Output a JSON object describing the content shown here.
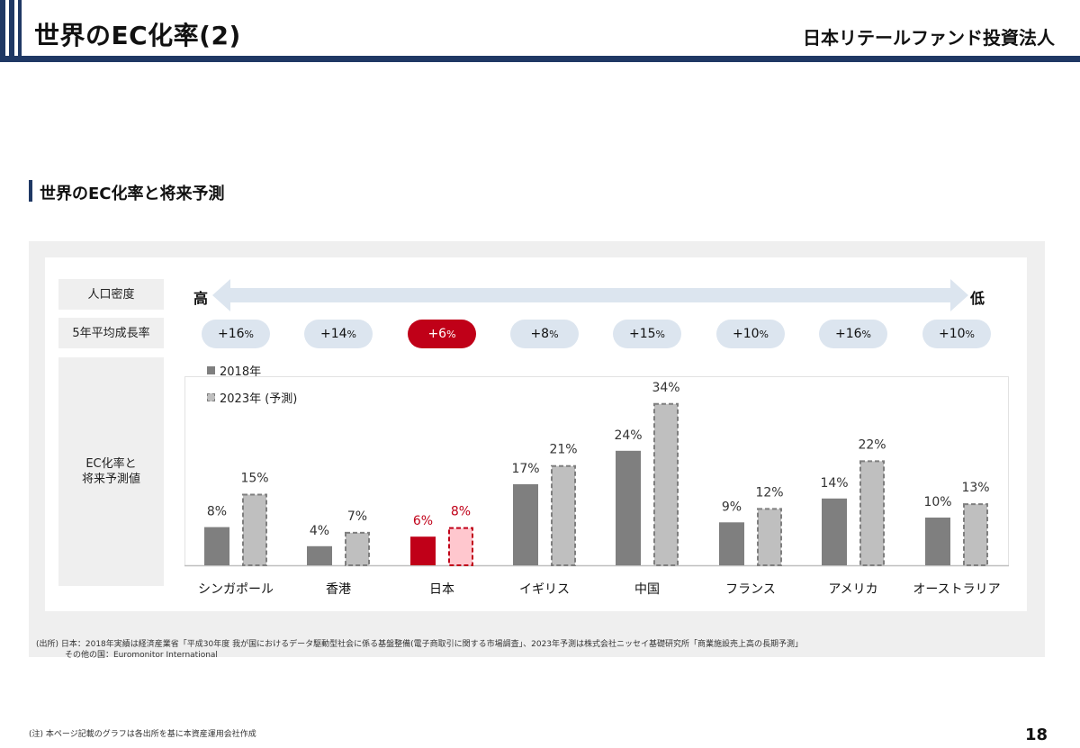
{
  "header": {
    "title": "世界のEC化率(2)",
    "company": "日本リテールファンド投資法人"
  },
  "section": {
    "title": "世界のEC化率と将来予測"
  },
  "rows": {
    "density_label": "人口密度",
    "growth_label": "5年平均成長率",
    "ec_label_line1": "EC化率と",
    "ec_label_line2": "将来予測値"
  },
  "density_arrow": {
    "high": "高",
    "low": "低"
  },
  "growth": [
    {
      "value": "+16",
      "unit": "%"
    },
    {
      "value": "+14",
      "unit": "%"
    },
    {
      "value": "+6",
      "unit": "%"
    },
    {
      "value": "+8",
      "unit": "%"
    },
    {
      "value": "+15",
      "unit": "%"
    },
    {
      "value": "+10",
      "unit": "%"
    },
    {
      "value": "+16",
      "unit": "%"
    },
    {
      "value": "+10",
      "unit": "%"
    }
  ],
  "colors": {
    "navy": "#1f3864",
    "bar_2018": "#7f7f7f",
    "bar_2023": "#bfbfbf",
    "japan_2018": "#c00018",
    "japan_2023": "#ffc7ce",
    "japan_text": "#c00018",
    "pill": "#dce5ef"
  },
  "chart_data": {
    "type": "bar",
    "categories": [
      "シンガポール",
      "香港",
      "日本",
      "イギリス",
      "中国",
      "フランス",
      "アメリカ",
      "オーストラリア"
    ],
    "series": [
      {
        "name": "2018年",
        "values": [
          8,
          4,
          6,
          17,
          24,
          9,
          14,
          10
        ]
      },
      {
        "name": "2023年 (予測)",
        "values": [
          15,
          7,
          8,
          21,
          34,
          12,
          22,
          13
        ]
      }
    ],
    "labels_2018": [
      "8%",
      "4%",
      "6%",
      "17%",
      "24%",
      "9%",
      "14%",
      "10%"
    ],
    "labels_2023": [
      "15%",
      "7%",
      "8%",
      "21%",
      "34%",
      "12%",
      "22%",
      "13%"
    ],
    "highlight_index": 2,
    "ylim": [
      0,
      34
    ],
    "grid": false,
    "legend_position": "top-left"
  },
  "footer": {
    "source_line1": "(出所)  日本：2018年実績は経済産業省「平成30年度 我が国におけるデータ駆動型社会に係る基盤整備(電子商取引に関する市場調査」、2023年予測は株式会社ニッセイ基礎研究所「商業施設売上高の長期予測」",
    "source_line2": "その他の国：Euromonitor International",
    "note": "(注)   本ページ記載のグラフは各出所を基に本資産運用会社作成",
    "page": "18"
  }
}
